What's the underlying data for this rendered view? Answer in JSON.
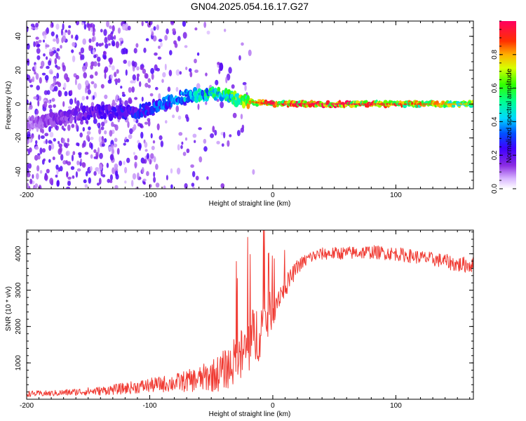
{
  "figure": {
    "title": "GN04.2025.054.16.17.G27"
  },
  "colors": {
    "snr_line": "#f03a32",
    "axis": "#000000",
    "background": "#ffffff"
  },
  "chart_data": [
    {
      "type": "heatmap",
      "name": "spectrogram",
      "title": "GN04.2025.054.16.17.G27",
      "xlabel": "Height of straight line (km)",
      "ylabel": "Frequency (Hz)",
      "xlim": [
        -200,
        163
      ],
      "ylim": [
        -50,
        49
      ],
      "xticks": [
        -200,
        -100,
        0,
        100
      ],
      "xtick_labels": [
        "-200",
        "-100",
        "0",
        "100"
      ],
      "yticks": [
        -40,
        -20,
        0,
        20,
        40
      ],
      "ytick_labels": [
        "-40",
        "-20",
        "0",
        "20",
        "40"
      ],
      "colorbar": {
        "label": "Normalized spectral amplitude",
        "range": [
          0,
          1
        ],
        "ticks": [
          0.0,
          0.2,
          0.4,
          0.6,
          0.8
        ],
        "tick_labels": [
          "0.0",
          "0.2",
          "0.4",
          "0.6",
          "0.8"
        ]
      },
      "ridge": {
        "description_points_height_km": [
          -200,
          -150,
          -110,
          -90,
          -70,
          -55,
          -40,
          -30,
          -15,
          0,
          50,
          100,
          163
        ],
        "center_frequency_hz": [
          -12,
          -5,
          -5,
          0,
          5,
          6,
          6,
          3,
          1,
          0,
          0,
          0,
          0
        ],
        "amplitude": [
          0.12,
          0.22,
          0.3,
          0.38,
          0.45,
          0.55,
          0.6,
          0.7,
          0.85,
          0.95,
          0.97,
          0.9,
          0.75
        ]
      },
      "blob": {
        "height_km": -42,
        "frequency_hz": 22,
        "amplitude": 0.2
      }
    },
    {
      "type": "line",
      "name": "snr",
      "xlabel": "Height of straight line (km)",
      "ylabel": "SNR (10 * v/v)",
      "xlim": [
        -200,
        163
      ],
      "ylim": [
        0,
        4650
      ],
      "xticks": [
        -200,
        -100,
        0,
        100
      ],
      "xtick_labels": [
        "-200",
        "-100",
        "0",
        "100"
      ],
      "yticks": [
        1000,
        2000,
        3000,
        4000
      ],
      "ytick_labels": [
        "1000",
        "2000",
        "3000",
        "4000"
      ],
      "series": [
        {
          "name": "SNR",
          "x": [
            -200,
            -180,
            -160,
            -140,
            -120,
            -100,
            -80,
            -60,
            -45,
            -35,
            -25,
            -15,
            -5,
            0,
            5,
            10,
            15,
            20,
            30,
            40,
            60,
            80,
            100,
            120,
            140,
            150,
            163
          ],
          "mean": [
            150,
            160,
            200,
            230,
            300,
            380,
            450,
            550,
            700,
            900,
            1200,
            1700,
            2200,
            2500,
            2850,
            3100,
            3350,
            3650,
            3900,
            4000,
            4020,
            4050,
            4000,
            3900,
            3800,
            3700,
            3700
          ],
          "noise": [
            80,
            80,
            100,
            120,
            160,
            200,
            250,
            350,
            500,
            600,
            800,
            900,
            700,
            500,
            350,
            300,
            250,
            200,
            180,
            170,
            180,
            190,
            190,
            190,
            200,
            220,
            220
          ]
        }
      ]
    }
  ]
}
